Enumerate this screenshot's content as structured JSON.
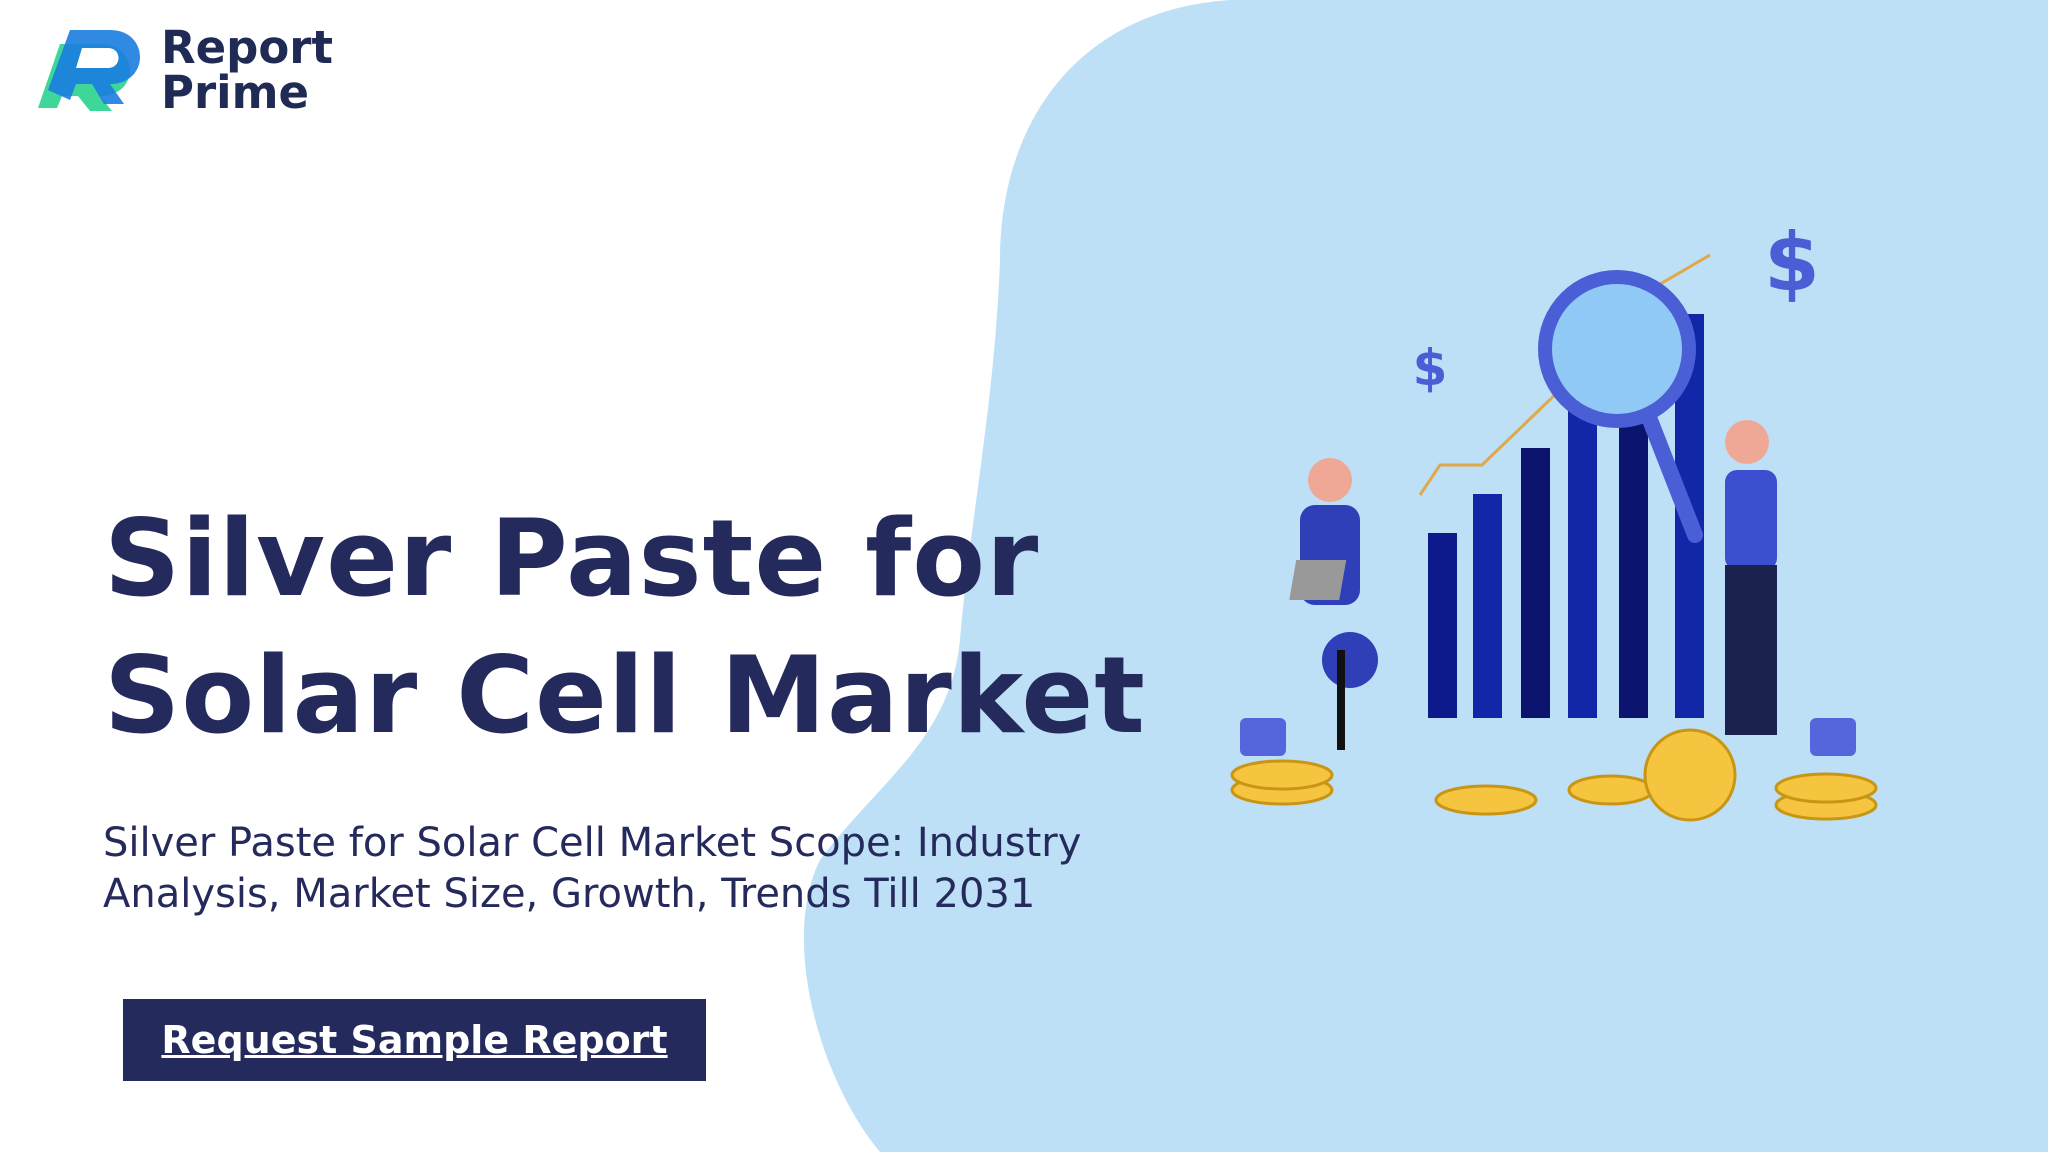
{
  "logo": {
    "line1": "Report",
    "line2": "Prime"
  },
  "hero": {
    "title": "Silver Paste for Solar Cell Market",
    "subtitle": "Silver Paste for Solar Cell Market Scope: Industry Analysis, Market Size, Growth, Trends Till 2031",
    "button": "Request Sample Report"
  }
}
